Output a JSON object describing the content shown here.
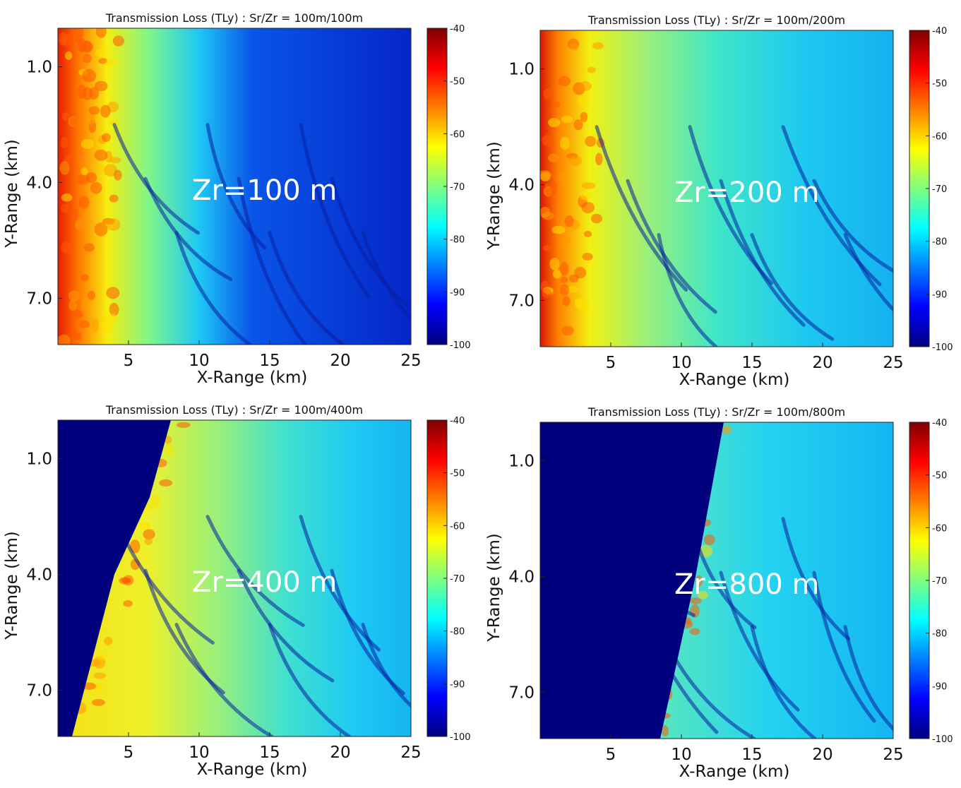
{
  "chart_data": [
    {
      "type": "heatmap",
      "title": "Transmission Loss (TLy) : Sr/Zr = 100m/100m",
      "annotation": "Zr=100 m",
      "xlabel": "X-Range (km)",
      "ylabel": "Y-Range (km)",
      "xlim": [
        0,
        25
      ],
      "ylim": [
        0,
        8.2
      ],
      "x_ticks": [
        "5",
        "10",
        "15",
        "20",
        "25"
      ],
      "y_ticks": [
        "1.0",
        "4.0",
        "7.0"
      ],
      "colorbar": {
        "min": -100,
        "max": -40,
        "ticks": [
          "-40",
          "-50",
          "-60",
          "-70",
          "-80",
          "-90",
          "-100"
        ]
      },
      "shadow_zone_boundary_km": null,
      "colormap": "jet"
    },
    {
      "type": "heatmap",
      "title": "Transmission Loss (TLy) : Sr/Zr = 100m/200m",
      "annotation": "Zr=200 m",
      "xlabel": "X-Range (km)",
      "ylabel": "Y-Range (km)",
      "xlim": [
        0,
        25
      ],
      "ylim": [
        0,
        8.2
      ],
      "x_ticks": [
        "5",
        "10",
        "15",
        "20",
        "25"
      ],
      "y_ticks": [
        "1.0",
        "4.0",
        "7.0"
      ],
      "colorbar": {
        "min": -100,
        "max": -40,
        "ticks": [
          "-40",
          "-50",
          "-60",
          "-70",
          "-80",
          "-90",
          "-100"
        ]
      },
      "shadow_zone_boundary_km": null,
      "colormap": "jet"
    },
    {
      "type": "heatmap",
      "title": "Transmission Loss (TLy) : Sr/Zr = 100m/400m",
      "annotation": "Zr=400 m",
      "xlabel": "X-Range (km)",
      "ylabel": "Y-Range (km)",
      "xlim": [
        0,
        25
      ],
      "ylim": [
        0,
        8.2
      ],
      "x_ticks": [
        "5",
        "10",
        "15",
        "20",
        "25"
      ],
      "y_ticks": [
        "1.0",
        "4.0",
        "7.0"
      ],
      "colorbar": {
        "min": -100,
        "max": -40,
        "ticks": [
          "-40",
          "-50",
          "-60",
          "-70",
          "-80",
          "-90",
          "-100"
        ]
      },
      "shadow_zone_boundary_km": [
        [
          8.0,
          0
        ],
        [
          6.5,
          2.0
        ],
        [
          4.0,
          4.0
        ],
        [
          1.0,
          8.2
        ]
      ],
      "colormap": "jet"
    },
    {
      "type": "heatmap",
      "title": "Transmission Loss (TLy) : Sr/Zr = 100m/800m",
      "annotation": "Zr=800 m",
      "xlabel": "X-Range (km)",
      "ylabel": "Y-Range (km)",
      "xlim": [
        0,
        25
      ],
      "ylim": [
        0,
        8.2
      ],
      "x_ticks": [
        "5",
        "10",
        "15",
        "20",
        "25"
      ],
      "y_ticks": [
        "1.0",
        "4.0",
        "7.0"
      ],
      "colorbar": {
        "min": -100,
        "max": -40,
        "ticks": [
          "-40",
          "-50",
          "-60",
          "-70",
          "-80",
          "-90",
          "-100"
        ]
      },
      "shadow_zone_boundary_km": [
        [
          13.0,
          0
        ],
        [
          12.0,
          2.0
        ],
        [
          11.0,
          4.0
        ],
        [
          8.5,
          8.2
        ]
      ],
      "colormap": "jet"
    }
  ]
}
